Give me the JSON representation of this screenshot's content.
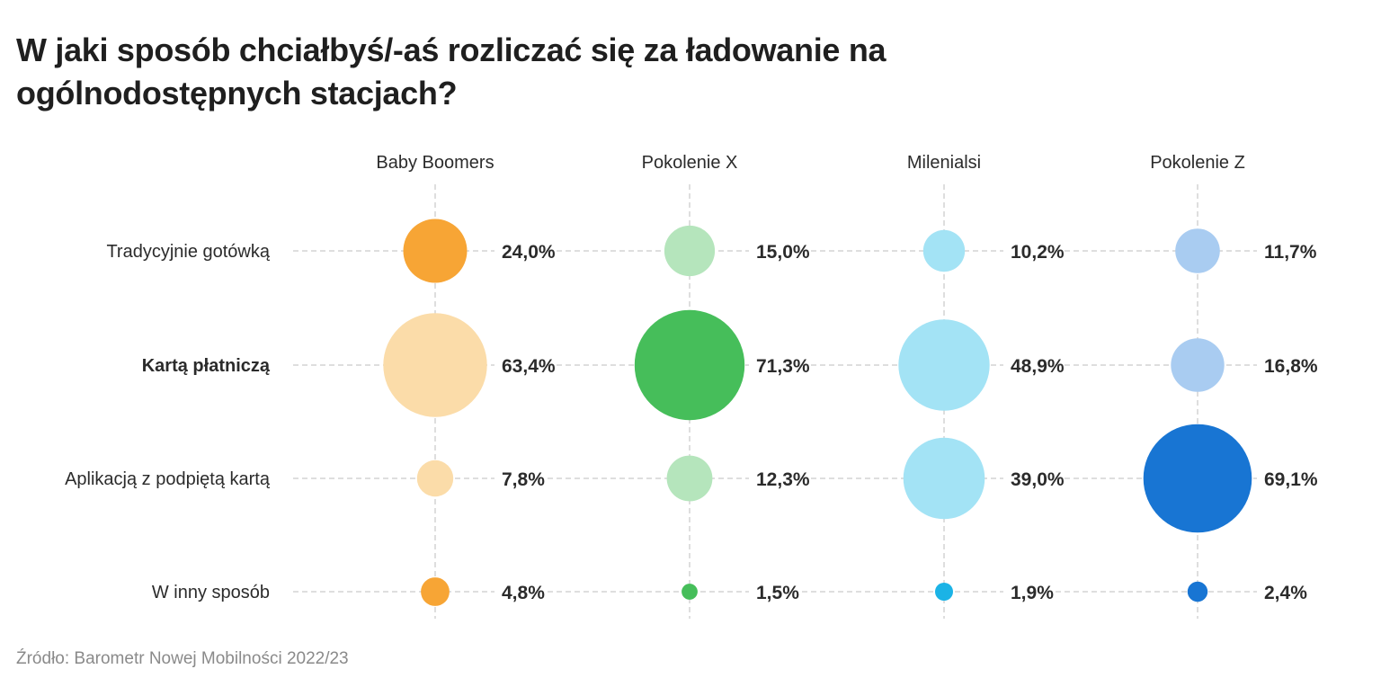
{
  "chart_data": {
    "type": "bubble",
    "title": "W jaki sposób chciałbyś/-aś rozliczać się za ładowanie na ogólnodostępnych stacjach?",
    "source": "Źródło: Barometr Nowej Mobilności 2022/23",
    "categories": [
      "Tradycyjnie gotówką",
      "Kartą płatniczą",
      "Aplikacją z podpiętą kartą",
      "W inny sposób"
    ],
    "highlighted_category": "Kartą płatniczą",
    "series": [
      {
        "name": "Baby Boomers",
        "values": [
          24.0,
          63.4,
          7.8,
          4.8
        ],
        "labels": [
          "24,0%",
          "63,4%",
          "7,8%",
          "4,8%"
        ],
        "colors": [
          "#F7A535",
          "#FBDCA9",
          "#FBDCA9",
          "#F7A535"
        ]
      },
      {
        "name": "Pokolenie X",
        "values": [
          15.0,
          71.3,
          12.3,
          1.5
        ],
        "labels": [
          "15,0%",
          "71,3%",
          "12,3%",
          "1,5%"
        ],
        "colors": [
          "#B5E5BC",
          "#46BE5A",
          "#B5E5BC",
          "#46BE5A"
        ]
      },
      {
        "name": "Milenialsi",
        "values": [
          10.2,
          48.9,
          39.0,
          1.9
        ],
        "labels": [
          "10,2%",
          "48,9%",
          "39,0%",
          "1,9%"
        ],
        "colors": [
          "#A3E3F5",
          "#A3E3F5",
          "#A3E3F5",
          "#1BB3E6"
        ]
      },
      {
        "name": "Pokolenie Z",
        "values": [
          11.7,
          16.8,
          69.1,
          2.4
        ],
        "labels": [
          "11,7%",
          "16,8%",
          "69,1%",
          "2,4%"
        ],
        "colors": [
          "#A9CCF1",
          "#A9CCF1",
          "#1875D3",
          "#1875D3"
        ]
      }
    ],
    "legend": "none",
    "grid": "dashed"
  }
}
